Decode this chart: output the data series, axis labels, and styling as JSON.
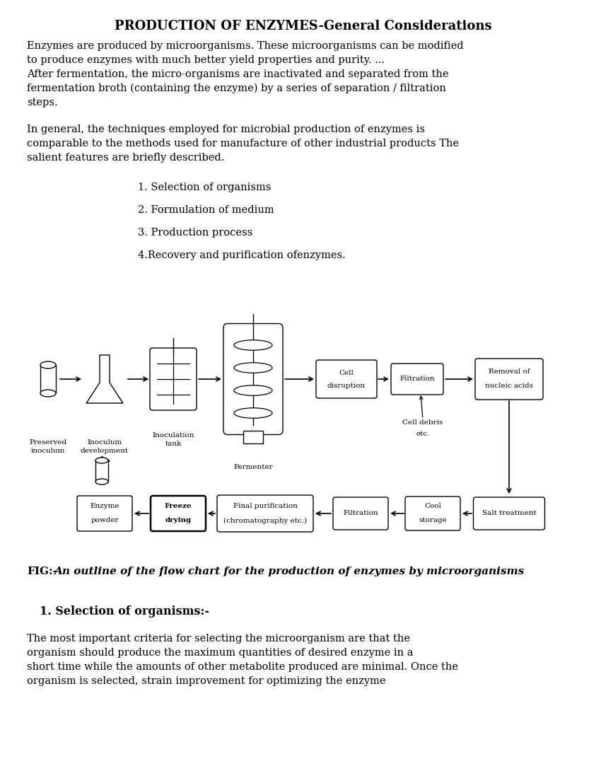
{
  "title": "PRODUCTION OF ENZYMES-General Considerations",
  "para1_line1": "Enzymes are produced by microorganisms. These microorganisms can be modified",
  "para1_line2": "to produce enzymes with much better yield properties and purity. ...",
  "para1_line3": "After fermentation, the micro-organisms are inactivated and separated from the",
  "para1_line4": "fermentation broth (containing the enzyme) by a series of separation / filtration",
  "para1_line5": "steps.",
  "para2_line1": "In general, the techniques employed for microbial production of enzymes is",
  "para2_line2": "comparable to the methods used for manufacture of other industrial products The",
  "para2_line3": "salient features are briefly described.",
  "list_items": [
    "1. Selection of organisms",
    "2. Formulation of medium",
    "3. Production process",
    "4.Recovery and purification ofenzymes."
  ],
  "fig_caption_pre": "FIG:-",
  "fig_caption_italic": "An outline of the flow chart for the production of enzymes by microorganisms",
  "section_header": "1. Selection of organisms:-",
  "section_para_line1": "The most important criteria for selecting the microorganism are that the",
  "section_para_line2": "organism should produce the maximum quantities of desired enzyme in a",
  "section_para_line3": "short time while the amounts of other metabolite produced are minimal. Once the",
  "section_para_line4": "organism is selected, strain improvement for optimizing the enzyme",
  "bg_color": "#ffffff",
  "text_color": "#000000",
  "font_size_title": 13,
  "font_size_body": 10.5,
  "font_size_list": 10.5,
  "font_size_caption": 11,
  "font_size_section": 11.5,
  "font_size_diagram": 7.5
}
